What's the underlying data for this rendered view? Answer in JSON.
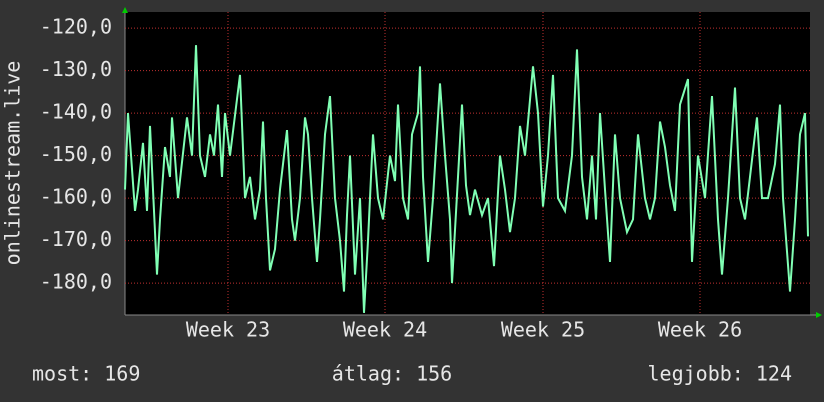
{
  "chart_data": {
    "type": "line",
    "y_label": "onlinestream.live",
    "x": [
      0,
      3,
      10,
      13,
      18,
      22,
      25,
      32,
      35,
      40,
      45,
      47,
      53,
      62,
      67,
      71,
      75,
      80,
      85,
      89,
      93,
      97,
      100,
      105,
      115,
      120,
      125,
      130,
      135,
      138,
      141,
      145,
      150,
      155,
      162,
      167,
      170,
      175,
      180,
      183,
      187,
      192,
      195,
      200,
      205,
      210,
      215,
      219,
      222,
      225,
      230,
      235,
      239,
      243,
      248,
      253,
      258,
      265,
      270,
      273,
      278,
      283,
      287,
      293,
      295,
      298,
      303,
      308,
      315,
      320,
      325,
      327,
      333,
      337,
      341,
      345,
      350,
      357,
      363,
      369,
      375,
      380,
      385,
      390,
      395,
      400,
      408,
      413,
      418,
      423,
      428,
      433,
      440,
      447,
      452,
      457,
      462,
      467,
      471,
      475,
      480,
      485,
      490,
      495,
      502,
      508,
      513,
      520,
      525,
      530,
      535,
      540,
      545,
      550,
      555,
      563,
      567,
      573,
      580,
      587,
      593,
      597,
      603,
      610,
      615,
      620,
      625,
      632,
      637,
      643,
      650,
      655,
      658,
      665,
      670,
      675,
      680,
      683
    ],
    "series": [
      {
        "color": "#80ffb4",
        "values": [
          -158,
          -140,
          -163,
          -158,
          -147,
          -163,
          -143,
          -178,
          -165,
          -148,
          -155,
          -141,
          -160,
          -141,
          -150,
          -124,
          -150,
          -155,
          -145,
          -150,
          -138,
          -155,
          -140,
          -150,
          -131,
          -160,
          -155,
          -165,
          -158,
          -142,
          -160,
          -177,
          -172,
          -158,
          -144,
          -165,
          -170,
          -160,
          -141,
          -145,
          -160,
          -175,
          -165,
          -145,
          -136,
          -160,
          -170,
          -182,
          -164,
          -150,
          -178,
          -160,
          -187,
          -170,
          -145,
          -160,
          -165,
          -150,
          -156,
          -138,
          -160,
          -165,
          -145,
          -140,
          -129,
          -155,
          -175,
          -160,
          -133,
          -150,
          -165,
          -180,
          -155,
          -138,
          -157,
          -164,
          -158,
          -164,
          -160,
          -176,
          -150,
          -158,
          -168,
          -160,
          -143,
          -150,
          -129,
          -140,
          -162,
          -150,
          -131,
          -160,
          -163,
          -150,
          -125,
          -155,
          -165,
          -150,
          -165,
          -140,
          -158,
          -175,
          -145,
          -160,
          -168,
          -165,
          -145,
          -160,
          -165,
          -160,
          -142,
          -148,
          -157,
          -163,
          -138,
          -132,
          -175,
          -150,
          -160,
          -136,
          -165,
          -178,
          -160,
          -134,
          -160,
          -165,
          -155,
          -141,
          -160,
          -160,
          -152,
          -138,
          -160,
          -182,
          -165,
          -145,
          -140,
          -169
        ]
      }
    ],
    "xlim": [
      0,
      685
    ],
    "xticks": [
      {
        "value": 103,
        "label": "Week 23"
      },
      {
        "value": 260,
        "label": "Week 24"
      },
      {
        "value": 418,
        "label": "Week 25"
      },
      {
        "value": 575,
        "label": "Week 26"
      }
    ],
    "ylim": [
      -187.5,
      -116.2
    ],
    "yticks": [
      {
        "value": -180,
        "label": "-180,0"
      },
      {
        "value": -170,
        "label": "-170,0"
      },
      {
        "value": -160,
        "label": "-160,0"
      },
      {
        "value": -150,
        "label": "-150,0"
      },
      {
        "value": -140,
        "label": "-140,0"
      },
      {
        "value": -130,
        "label": "-130,0"
      },
      {
        "value": -120,
        "label": "-120,0"
      }
    ],
    "grid": true,
    "stats": [
      "most: 169",
      "átlag: 156",
      "legjobb: 124"
    ]
  }
}
